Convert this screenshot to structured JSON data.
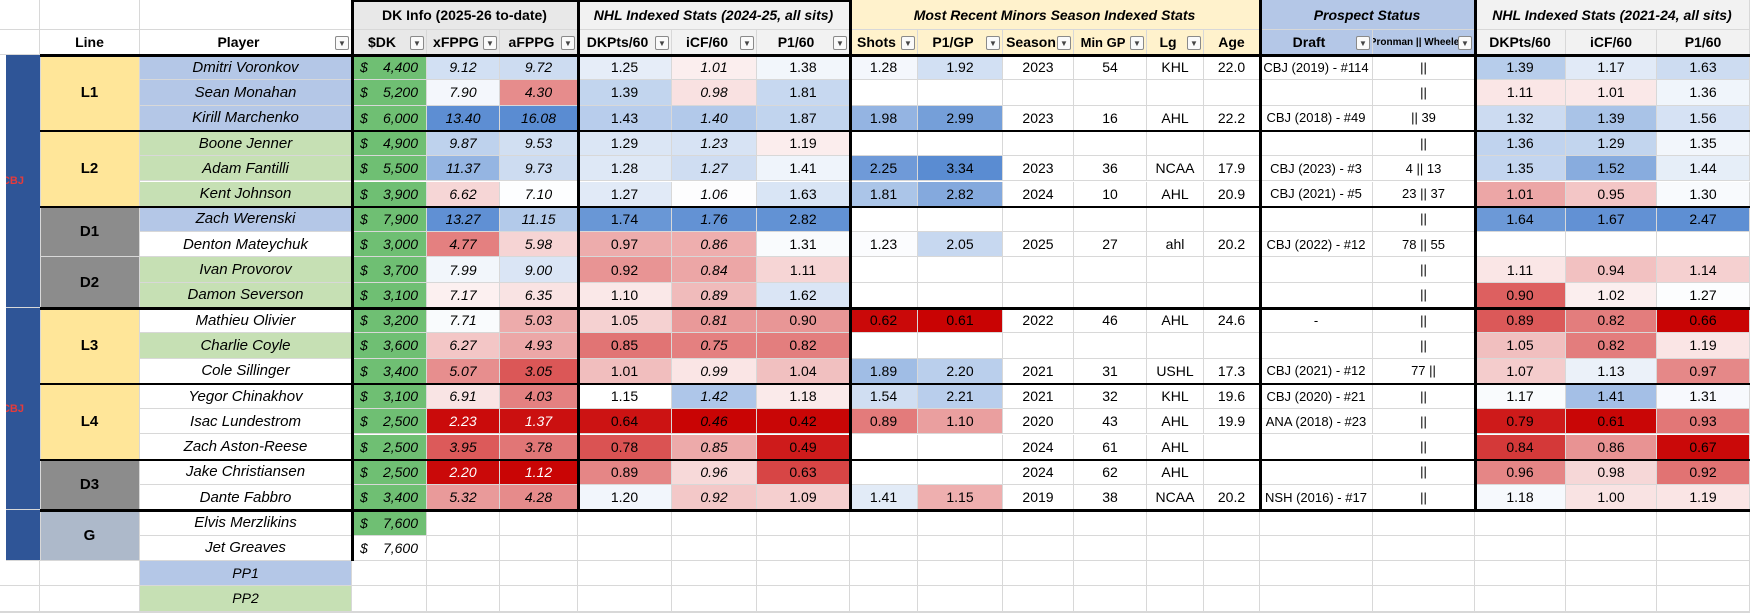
{
  "groups": [
    {
      "label": "DK Info (2025-26 to-date)",
      "italic": false,
      "bg": "#e8e8e8"
    },
    {
      "label": "NHL Indexed Stats (2024-25, all sits)",
      "italic": true,
      "bg": "#f2f2f2"
    },
    {
      "label": "Most Recent Minors Season Indexed Stats",
      "italic": true,
      "bg": "#fff2cc"
    },
    {
      "label": "Prospect Status",
      "italic": true,
      "bg": "#b4c7e7"
    },
    {
      "label": "NHL Indexed Stats (2021-24, all sits)",
      "italic": true,
      "bg": "#f2f2f2"
    }
  ],
  "headers": [
    "Line",
    "Player",
    "$DK",
    "xFPPG",
    "aFPPG",
    "DKPts/60",
    "iCF/60",
    "P1/60",
    "Shots",
    "P1/GP",
    "Season",
    "Min GP",
    "Lg",
    "Age",
    "Draft",
    "Pronman || Wheeler",
    "DKPts/60",
    "iCF/60",
    "P1/60"
  ],
  "team_label": "CBJ",
  "lines": [
    {
      "label": "L1",
      "bg": "#ffe699"
    },
    {
      "label": "L2",
      "bg": "#ffe699"
    },
    {
      "label": "D1",
      "bg": "#8c8c8c"
    },
    {
      "label": "D2",
      "bg": "#8c8c8c"
    },
    {
      "label": "L3",
      "bg": "#ffe699"
    },
    {
      "label": "L4",
      "bg": "#ffe699"
    },
    {
      "label": "D3",
      "bg": "#8c8c8c"
    },
    {
      "label": "G",
      "bg": "#adb9ca"
    }
  ],
  "rows": [
    {
      "player": "Dmitri Voronkov",
      "dk": "4,400",
      "xfppg": "9.12",
      "afppg": "9.72",
      "dkpts60": "1.25",
      "icf60": "1.01",
      "p160": "1.38",
      "shots": "1.28",
      "p1gp": "1.92",
      "season": "2023",
      "mingp": "54",
      "lg": "KHL",
      "age": "22.0",
      "draft": "CBJ (2019) - #114",
      "pw": "||",
      "h_dkpts60": "1.39",
      "h_icf60": "1.17",
      "h_p160": "1.63"
    },
    {
      "player": "Sean Monahan",
      "dk": "5,200",
      "xfppg": "7.90",
      "afppg": "4.30",
      "dkpts60": "1.39",
      "icf60": "0.98",
      "p160": "1.81",
      "shots": "",
      "p1gp": "",
      "season": "",
      "mingp": "",
      "lg": "",
      "age": "",
      "draft": "",
      "pw": "||",
      "h_dkpts60": "1.11",
      "h_icf60": "1.01",
      "h_p160": "1.36"
    },
    {
      "player": "Kirill Marchenko",
      "dk": "6,000",
      "xfppg": "13.40",
      "afppg": "16.08",
      "dkpts60": "1.43",
      "icf60": "1.40",
      "p160": "1.87",
      "shots": "1.98",
      "p1gp": "2.99",
      "season": "2023",
      "mingp": "16",
      "lg": "AHL",
      "age": "22.2",
      "draft": "CBJ (2018) - #49",
      "pw": "|| 39",
      "h_dkpts60": "1.32",
      "h_icf60": "1.39",
      "h_p160": "1.56"
    },
    {
      "player": "Boone Jenner",
      "dk": "4,900",
      "xfppg": "9.87",
      "afppg": "9.53",
      "dkpts60": "1.29",
      "icf60": "1.23",
      "p160": "1.19",
      "shots": "",
      "p1gp": "",
      "season": "",
      "mingp": "",
      "lg": "",
      "age": "",
      "draft": "",
      "pw": "||",
      "h_dkpts60": "1.36",
      "h_icf60": "1.29",
      "h_p160": "1.35"
    },
    {
      "player": "Adam Fantilli",
      "dk": "5,500",
      "xfppg": "11.37",
      "afppg": "9.73",
      "dkpts60": "1.28",
      "icf60": "1.27",
      "p160": "1.41",
      "shots": "2.25",
      "p1gp": "3.34",
      "season": "2023",
      "mingp": "36",
      "lg": "NCAA",
      "age": "17.9",
      "draft": "CBJ (2023) - #3",
      "pw": "4 || 13",
      "h_dkpts60": "1.35",
      "h_icf60": "1.52",
      "h_p160": "1.44"
    },
    {
      "player": "Kent Johnson",
      "dk": "3,900",
      "xfppg": "6.62",
      "afppg": "7.10",
      "dkpts60": "1.27",
      "icf60": "1.06",
      "p160": "1.63",
      "shots": "1.81",
      "p1gp": "2.82",
      "season": "2024",
      "mingp": "10",
      "lg": "AHL",
      "age": "20.9",
      "draft": "CBJ (2021) - #5",
      "pw": "23 || 37",
      "h_dkpts60": "1.01",
      "h_icf60": "0.95",
      "h_p160": "1.30"
    },
    {
      "player": "Zach Werenski",
      "dk": "7,900",
      "xfppg": "13.27",
      "afppg": "11.15",
      "dkpts60": "1.74",
      "icf60": "1.76",
      "p160": "2.82",
      "shots": "",
      "p1gp": "",
      "season": "",
      "mingp": "",
      "lg": "",
      "age": "",
      "draft": "",
      "pw": "||",
      "h_dkpts60": "1.64",
      "h_icf60": "1.67",
      "h_p160": "2.47"
    },
    {
      "player": "Denton Mateychuk",
      "dk": "3,000",
      "xfppg": "4.77",
      "afppg": "5.98",
      "dkpts60": "0.97",
      "icf60": "0.86",
      "p160": "1.31",
      "shots": "1.23",
      "p1gp": "2.05",
      "season": "2025",
      "mingp": "27",
      "lg": "ahl",
      "age": "20.2",
      "draft": "CBJ (2022) - #12",
      "pw": "78 || 55",
      "h_dkpts60": "",
      "h_icf60": "",
      "h_p160": ""
    },
    {
      "player": "Ivan Provorov",
      "dk": "3,700",
      "xfppg": "7.99",
      "afppg": "9.00",
      "dkpts60": "0.92",
      "icf60": "0.84",
      "p160": "1.11",
      "shots": "",
      "p1gp": "",
      "season": "",
      "mingp": "",
      "lg": "",
      "age": "",
      "draft": "",
      "pw": "||",
      "h_dkpts60": "1.11",
      "h_icf60": "0.94",
      "h_p160": "1.14"
    },
    {
      "player": "Damon Severson",
      "dk": "3,100",
      "xfppg": "7.17",
      "afppg": "6.35",
      "dkpts60": "1.10",
      "icf60": "0.89",
      "p160": "1.62",
      "shots": "",
      "p1gp": "",
      "season": "",
      "mingp": "",
      "lg": "",
      "age": "",
      "draft": "",
      "pw": "||",
      "h_dkpts60": "0.90",
      "h_icf60": "1.02",
      "h_p160": "1.27"
    },
    {
      "player": "Mathieu Olivier",
      "dk": "3,200",
      "xfppg": "7.71",
      "afppg": "5.03",
      "dkpts60": "1.05",
      "icf60": "0.81",
      "p160": "0.90",
      "shots": "0.62",
      "p1gp": "0.61",
      "season": "2022",
      "mingp": "46",
      "lg": "AHL",
      "age": "24.6",
      "draft": "-",
      "pw": "||",
      "h_dkpts60": "0.89",
      "h_icf60": "0.82",
      "h_p160": "0.66"
    },
    {
      "player": "Charlie Coyle",
      "dk": "3,600",
      "xfppg": "6.27",
      "afppg": "4.93",
      "dkpts60": "0.85",
      "icf60": "0.75",
      "p160": "0.82",
      "shots": "",
      "p1gp": "",
      "season": "",
      "mingp": "",
      "lg": "",
      "age": "",
      "draft": "",
      "pw": "||",
      "h_dkpts60": "1.05",
      "h_icf60": "0.82",
      "h_p160": "1.19"
    },
    {
      "player": "Cole Sillinger",
      "dk": "3,400",
      "xfppg": "5.07",
      "afppg": "3.05",
      "dkpts60": "1.01",
      "icf60": "0.99",
      "p160": "1.04",
      "shots": "1.89",
      "p1gp": "2.20",
      "season": "2021",
      "mingp": "31",
      "lg": "USHL",
      "age": "17.3",
      "draft": "CBJ (2021) - #12",
      "pw": "77 ||",
      "h_dkpts60": "1.07",
      "h_icf60": "1.13",
      "h_p160": "0.97"
    },
    {
      "player": "Yegor Chinakhov",
      "dk": "3,100",
      "xfppg": "6.91",
      "afppg": "4.03",
      "dkpts60": "1.15",
      "icf60": "1.42",
      "p160": "1.18",
      "shots": "1.54",
      "p1gp": "2.21",
      "season": "2021",
      "mingp": "32",
      "lg": "KHL",
      "age": "19.6",
      "draft": "CBJ (2020) - #21",
      "pw": "||",
      "h_dkpts60": "1.17",
      "h_icf60": "1.41",
      "h_p160": "1.31"
    },
    {
      "player": "Isac Lundestrom",
      "dk": "2,500",
      "xfppg": "2.23",
      "afppg": "1.37",
      "dkpts60": "0.64",
      "icf60": "0.46",
      "p160": "0.42",
      "shots": "0.89",
      "p1gp": "1.10",
      "season": "2020",
      "mingp": "43",
      "lg": "AHL",
      "age": "19.9",
      "draft": "ANA (2018) - #23",
      "pw": "||",
      "h_dkpts60": "0.79",
      "h_icf60": "0.61",
      "h_p160": "0.93"
    },
    {
      "player": "Zach Aston-Reese",
      "dk": "2,500",
      "xfppg": "3.95",
      "afppg": "3.78",
      "dkpts60": "0.78",
      "icf60": "0.85",
      "p160": "0.49",
      "shots": "",
      "p1gp": "",
      "season": "2024",
      "mingp": "61",
      "lg": "AHL",
      "age": "",
      "draft": "",
      "pw": "||",
      "h_dkpts60": "0.84",
      "h_icf60": "0.86",
      "h_p160": "0.67"
    },
    {
      "player": "Jake Christiansen",
      "dk": "2,500",
      "xfppg": "2.20",
      "afppg": "1.12",
      "dkpts60": "0.89",
      "icf60": "0.96",
      "p160": "0.63",
      "shots": "",
      "p1gp": "",
      "season": "2024",
      "mingp": "62",
      "lg": "AHL",
      "age": "",
      "draft": "",
      "pw": "||",
      "h_dkpts60": "0.96",
      "h_icf60": "0.98",
      "h_p160": "0.92"
    },
    {
      "player": "Dante Fabbro",
      "dk": "3,400",
      "xfppg": "5.32",
      "afppg": "4.28",
      "dkpts60": "1.20",
      "icf60": "0.92",
      "p160": "1.09",
      "shots": "1.41",
      "p1gp": "1.15",
      "season": "2019",
      "mingp": "38",
      "lg": "NCAA",
      "age": "20.2",
      "draft": "NSH (2016) - #17",
      "pw": "||",
      "h_dkpts60": "1.18",
      "h_icf60": "1.00",
      "h_p160": "1.19"
    },
    {
      "player": "Elvis Merzlikins",
      "dk": "7,600",
      "xfppg": "",
      "afppg": "",
      "dkpts60": "",
      "icf60": "",
      "p160": "",
      "shots": "",
      "p1gp": "",
      "season": "",
      "mingp": "",
      "lg": "",
      "age": "",
      "draft": "",
      "pw": "",
      "h_dkpts60": "",
      "h_icf60": "",
      "h_p160": ""
    },
    {
      "player": "Jet Greaves",
      "dk": "7,600",
      "xfppg": "",
      "afppg": "",
      "dkpts60": "",
      "icf60": "",
      "p160": "",
      "shots": "",
      "p1gp": "",
      "season": "",
      "mingp": "",
      "lg": "",
      "age": "",
      "draft": "",
      "pw": "",
      "h_dkpts60": "",
      "h_icf60": "",
      "h_p160": ""
    }
  ],
  "pp_rows": [
    {
      "label": "PP1"
    },
    {
      "label": "PP2"
    }
  ],
  "dollar_sign": "$",
  "dropdown_icon": "chevron-down-icon",
  "colors": {
    "team_bar": "#2f5597",
    "team_text": "#e53b3b",
    "green_dk": "#6fbf73",
    "blue_player": "#b4c7e7",
    "green_player": "#c6e0b4"
  }
}
